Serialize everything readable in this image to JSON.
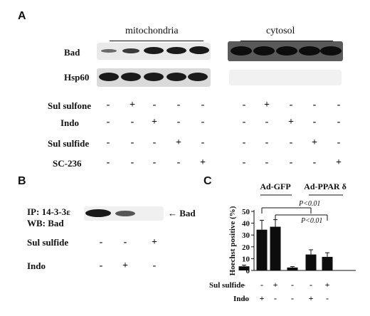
{
  "panels": {
    "a": "A",
    "b": "B",
    "c": "C"
  },
  "panel_a": {
    "group_labels": [
      "mitochondria",
      "cytosol"
    ],
    "blot_labels": [
      "Bad",
      "Hsp60"
    ],
    "treatments": [
      {
        "label": "Sul sulfone",
        "marks": [
          "-",
          "+",
          "-",
          "-",
          "-"
        ]
      },
      {
        "label": "Indo",
        "marks": [
          "-",
          "-",
          "+",
          "-",
          "-"
        ]
      },
      {
        "label": "Sul sulfide",
        "marks": [
          "-",
          "-",
          "-",
          "+",
          "-"
        ]
      },
      {
        "label": "SC-236",
        "marks": [
          "-",
          "-",
          "-",
          "-",
          "+"
        ]
      }
    ]
  },
  "panel_b": {
    "ip_label": "IP: 14-3-3ε",
    "wb_label": "WB: Bad",
    "arrow_label": "← Bad",
    "treatments": [
      {
        "label": "Sul sulfide",
        "marks": [
          "-",
          "-",
          "+"
        ]
      },
      {
        "label": "Indo",
        "marks": [
          "-",
          "+",
          "-"
        ]
      }
    ]
  },
  "chart_data": {
    "type": "bar",
    "ylabel": "Hoechst positive (%)",
    "ylim": [
      0,
      50
    ],
    "yticks": [
      0,
      10,
      20,
      30,
      40,
      50
    ],
    "groups": [
      "Ad-GFP",
      "Ad-PPAR δ"
    ],
    "values": [
      3.5,
      34.5,
      37,
      2.5,
      13.5,
      11.5
    ],
    "errors": [
      1,
      8,
      6,
      0.8,
      4,
      3.5
    ],
    "rows": [
      {
        "label": "Sul sulfide",
        "marks": [
          "-",
          "-",
          "+",
          "-",
          "-",
          "+"
        ]
      },
      {
        "label": "Indo",
        "marks": [
          "-",
          "+",
          "-",
          "-",
          "+",
          "-"
        ]
      }
    ],
    "annotations": [
      "P<0.01",
      "P<0.01"
    ]
  }
}
